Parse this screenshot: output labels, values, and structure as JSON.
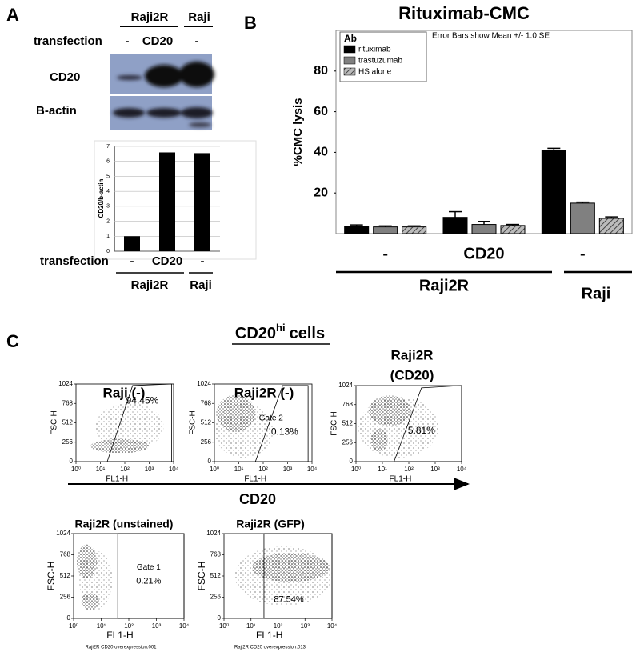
{
  "panel_labels": [
    "A",
    "B",
    "C"
  ],
  "blot": {
    "header_groups": [
      "Raji2R",
      "Raji"
    ],
    "transfection_label": "transfection",
    "lanes": [
      "-",
      "CD20",
      "-"
    ],
    "rows": [
      "CD20",
      "B-actin"
    ]
  },
  "chart_data": [
    {
      "type": "bar",
      "y_label": "CD20/b-actin",
      "x_label": "transfection",
      "categories": [
        "-",
        "CD20",
        "-"
      ],
      "groups": [
        "Raji2R",
        "Raji"
      ],
      "values": [
        1,
        6.6,
        6.55
      ],
      "color": "#000000",
      "ylim": [
        0,
        7
      ],
      "yticks": [
        0,
        1,
        2,
        3,
        4,
        5,
        6,
        7
      ]
    },
    {
      "type": "bar",
      "title": "Rituximab-CMC",
      "y_label": "%CMC lysis",
      "legend_title": "Ab",
      "note": "Error Bars show Mean +/- 1.0 SE",
      "categories": [
        "-",
        "CD20",
        "-"
      ],
      "groups": [
        "Raji2R",
        "Raji"
      ],
      "series": [
        {
          "name": "rituximab",
          "color": "#000000",
          "values": [
            3.5,
            8,
            41
          ],
          "errors": [
            0.8,
            2.8,
            1
          ]
        },
        {
          "name": "trastuzumab",
          "color": "#808080",
          "values": [
            3.3,
            4.5,
            15
          ],
          "errors": [
            0.5,
            1.5,
            0.5
          ]
        },
        {
          "name": "HS alone",
          "color": "#707070",
          "hatch": true,
          "values": [
            3.3,
            4,
            7.5
          ],
          "errors": [
            0.5,
            0.5,
            0.7
          ]
        }
      ],
      "ylim": [
        0,
        100
      ],
      "yticks": [
        20,
        40,
        60,
        80
      ]
    }
  ],
  "flow": {
    "title": "CD20",
    "title_sup": "hi",
    "title_rest": "cells",
    "arrow_label": "CD20",
    "plots": [
      {
        "title": [
          "Raji (-)"
        ],
        "gate_label": "94.45%",
        "x_label": "FL1-H",
        "y_label": "FSC-H",
        "log_x": true,
        "xlim": [
          1,
          10000
        ],
        "ylim": [
          0,
          1024
        ],
        "xticks": [
          {
            "value": 1,
            "label": "10⁰"
          },
          {
            "value": 10,
            "label": "10¹"
          },
          {
            "value": 100,
            "label": "10²"
          },
          {
            "value": 1000,
            "label": "10³"
          },
          {
            "value": 10000,
            "label": "10⁴"
          }
        ],
        "yticks": [
          0,
          256,
          512,
          768,
          1024
        ]
      },
      {
        "title": [
          "Raji2R (-)"
        ],
        "gate_name": "Gate 2",
        "gate_label": "0.13%",
        "x_label": "FL1-H",
        "y_label": "FSC-H",
        "log_x": true,
        "xlim": [
          1,
          10000
        ],
        "ylim": [
          0,
          1024
        ],
        "xticks": [
          {
            "value": 1,
            "label": "10⁰"
          },
          {
            "value": 10,
            "label": "10¹"
          },
          {
            "value": 100,
            "label": "10²"
          },
          {
            "value": 1000,
            "label": "10³"
          },
          {
            "value": 10000,
            "label": "10⁴"
          }
        ],
        "yticks": [
          0,
          256,
          512,
          768,
          1024
        ]
      },
      {
        "title": [
          "Raji2R",
          "(CD20)"
        ],
        "gate_label": "5.81%",
        "x_label": "FL1-H",
        "y_label": "FSC-H",
        "log_x": true,
        "xlim": [
          1,
          10000
        ],
        "ylim": [
          0,
          1024
        ],
        "xticks": [
          {
            "value": 1,
            "label": "10⁰"
          },
          {
            "value": 10,
            "label": "10¹"
          },
          {
            "value": 100,
            "label": "10²"
          },
          {
            "value": 1000,
            "label": "10³"
          },
          {
            "value": 10000,
            "label": "10⁴"
          }
        ],
        "yticks": [
          0,
          256,
          512,
          768,
          1024
        ]
      },
      {
        "title": [
          "Raji2R (unstained)"
        ],
        "gate_name": "Gate 1",
        "gate_label": "0.21%",
        "x_label": "FL1-H",
        "y_label": "FSC-H",
        "footer": "Raji2R CD20 overexpression.001",
        "log_x": true,
        "xlim": [
          1,
          10000
        ],
        "ylim": [
          0,
          1024
        ],
        "xticks": [
          {
            "value": 1,
            "label": "10⁰"
          },
          {
            "value": 10,
            "label": "10¹"
          },
          {
            "value": 100,
            "label": "10²"
          },
          {
            "value": 1000,
            "label": "10³"
          },
          {
            "value": 10000,
            "label": "10⁴"
          }
        ],
        "yticks": [
          0,
          256,
          512,
          768,
          1024
        ]
      },
      {
        "title": [
          "Raji2R (GFP)"
        ],
        "gate_label": "87.54%",
        "x_label": "FL1-H",
        "y_label": "FSC-H",
        "footer": "Raji2R CD20 overexpression.013",
        "log_x": true,
        "xlim": [
          1,
          10000
        ],
        "ylim": [
          0,
          1024
        ],
        "xticks": [
          {
            "value": 1,
            "label": "10⁰"
          },
          {
            "value": 10,
            "label": "10¹"
          },
          {
            "value": 100,
            "label": "10²"
          },
          {
            "value": 1000,
            "label": "10³"
          },
          {
            "value": 10000,
            "label": "10⁴"
          }
        ],
        "yticks": [
          0,
          256,
          512,
          768,
          1024
        ]
      }
    ]
  }
}
